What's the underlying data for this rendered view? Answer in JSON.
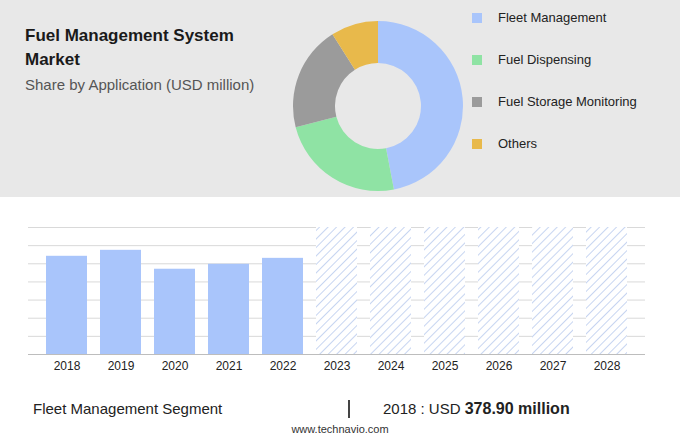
{
  "chart_data": [
    {
      "type": "donut",
      "title": "Fuel Management System Market",
      "subtitle": "Share by Application (USD million)",
      "categories": [
        "Fleet Management",
        "Fuel Dispensing",
        "Fuel Storage Monitoring",
        "Others"
      ],
      "values": [
        47,
        24,
        20,
        9
      ],
      "colors": [
        "#a9c5fb",
        "#8fe3a4",
        "#9b9b9b",
        "#e8b94b"
      ],
      "legend": "right"
    },
    {
      "type": "bar",
      "categories": [
        "2018",
        "2019",
        "2020",
        "2021",
        "2022",
        "2023",
        "2024",
        "2025",
        "2026",
        "2027",
        "2028"
      ],
      "values": [
        378.9,
        402,
        329,
        348,
        371,
        null,
        null,
        null,
        null,
        null,
        null
      ],
      "color": "#a9c5fb",
      "ylim": [
        0,
        490
      ],
      "yticks": [
        0,
        70,
        140,
        210,
        280,
        350,
        420,
        490
      ],
      "grid": true,
      "tick_labels": "x",
      "annotation": {
        "label": "Fleet Management Segment",
        "text": "2018 : USD",
        "value": "378.90 million"
      },
      "source": "www.technavio.com"
    }
  ]
}
